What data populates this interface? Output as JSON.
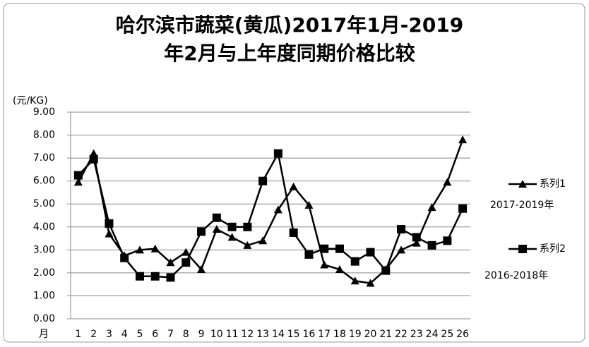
{
  "chart_data": {
    "type": "line",
    "title": "哈尔滨市蔬菜(黄瓜)2017年1月-2019",
    "subtitle": "年2月与上年度同期价格比较",
    "y_label": "(元/KG)",
    "x_label": "月",
    "categories": [
      "1",
      "2",
      "3",
      "4",
      "5",
      "6",
      "7",
      "8",
      "9",
      "10",
      "11",
      "12",
      "13",
      "14",
      "15",
      "16",
      "17",
      "18",
      "19",
      "20",
      "21",
      "22",
      "23",
      "24",
      "25",
      "26"
    ],
    "series": [
      {
        "name": "系列1",
        "marker": "triangle",
        "color": "#000000",
        "values": [
          5.95,
          7.2,
          3.7,
          2.75,
          3.0,
          3.05,
          2.45,
          2.9,
          2.15,
          3.9,
          3.55,
          3.2,
          3.4,
          4.75,
          5.75,
          4.95,
          2.35,
          2.15,
          1.65,
          1.55,
          2.15,
          3.0,
          3.3,
          4.85,
          5.95,
          7.8
        ]
      },
      {
        "name": "系列2",
        "marker": "square",
        "color": "#000000",
        "values": [
          6.25,
          6.95,
          4.15,
          2.65,
          1.85,
          1.85,
          1.8,
          2.45,
          3.8,
          4.4,
          4.0,
          4.0,
          6.0,
          7.2,
          3.75,
          2.8,
          3.05,
          3.05,
          2.5,
          2.9,
          2.1,
          3.9,
          3.55,
          3.2,
          3.4,
          4.8
        ]
      }
    ],
    "annotations": [
      "2017-2019年",
      "2016-2018年"
    ],
    "ylim": [
      0,
      9
    ],
    "yticks": [
      {
        "value": 0,
        "label": "0.00"
      },
      {
        "value": 1,
        "label": "1.00"
      },
      {
        "value": 2,
        "label": "2.00"
      },
      {
        "value": 3,
        "label": "3.00"
      },
      {
        "value": 4,
        "label": "4.00"
      },
      {
        "value": 5,
        "label": "5.00"
      },
      {
        "value": 6,
        "label": "6.00"
      },
      {
        "value": 7,
        "label": "7.00"
      },
      {
        "value": 8,
        "label": "8.00"
      },
      {
        "value": 9,
        "label": "9.00"
      }
    ],
    "grid": true
  }
}
